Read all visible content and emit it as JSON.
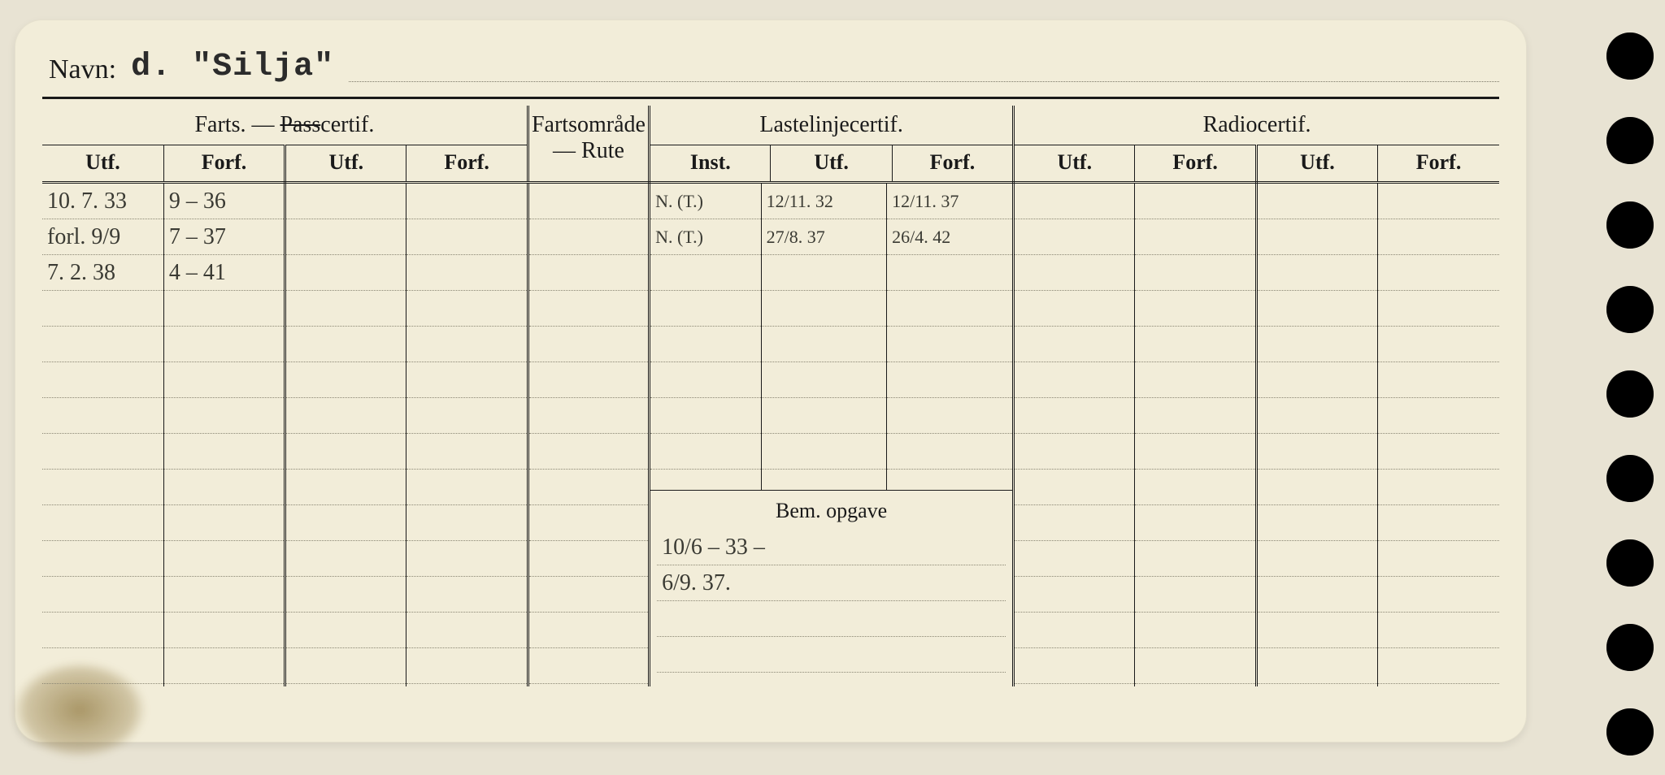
{
  "navn": {
    "label": "Navn:",
    "value": "d. \"Silja\""
  },
  "headers": {
    "farts_pass": {
      "pre": "Farts. — ",
      "strike": "Pass",
      "post": "certif."
    },
    "route": "Fartsområde — Rute",
    "laste": "Lastelinjecertif.",
    "radio": "Radiocertif.",
    "sub_utf": "Utf.",
    "sub_forf": "Forf.",
    "sub_inst": "Inst.",
    "bem": "Bem. opgave"
  },
  "farts": {
    "rows": [
      {
        "utf": "10. 7. 33",
        "forf": "9 – 36"
      },
      {
        "utf": "forl. 9/9",
        "forf": "7 – 37"
      },
      {
        "utf": "7. 2. 38",
        "forf": "4 – 41"
      }
    ]
  },
  "laste": {
    "rows": [
      {
        "inst": "N. (T.)",
        "utf": "12/11. 32",
        "forf": "12/11. 37"
      },
      {
        "inst": "N. (T.)",
        "utf": "27/8. 37",
        "forf": "26/4. 42"
      }
    ]
  },
  "bem": {
    "rows": [
      "10/6 – 33 –",
      "6/9. 37."
    ]
  },
  "style": {
    "paper": "#f2edd9",
    "bg": "#e8e3d3",
    "ink": "#1a1a1a",
    "dot": "#8a8673",
    "handwriting": "#3a3a33"
  },
  "blank_rows": 14,
  "laste_blank_rows": 6,
  "bem_blank_rows": 2,
  "radio_blank_rows": 14
}
